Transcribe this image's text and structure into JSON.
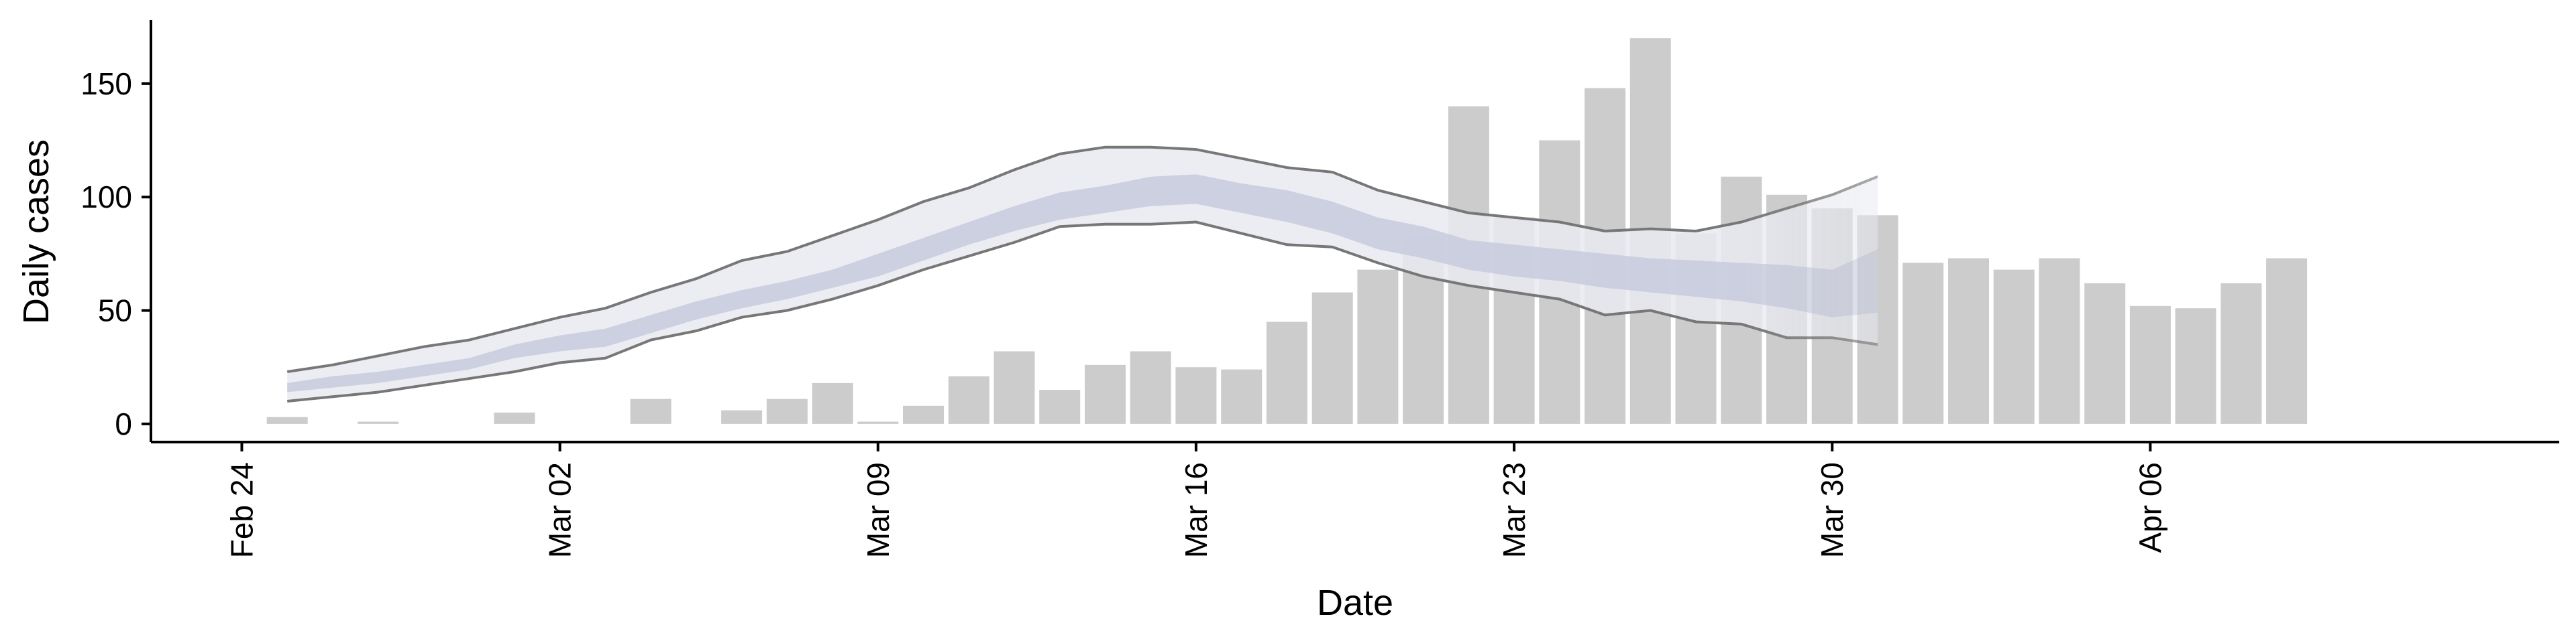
{
  "chart_data": {
    "type": "bar",
    "title": "",
    "xlabel": "Date",
    "ylabel": "Daily cases",
    "ylim": [
      -8,
      178
    ],
    "yticks": [
      0,
      50,
      100,
      150
    ],
    "xticks": [
      {
        "date": "2020-02-24",
        "label": "Feb 24"
      },
      {
        "date": "2020-03-02",
        "label": "Mar 02"
      },
      {
        "date": "2020-03-09",
        "label": "Mar 09"
      },
      {
        "date": "2020-03-16",
        "label": "Mar 16"
      },
      {
        "date": "2020-03-23",
        "label": "Mar 23"
      },
      {
        "date": "2020-03-30",
        "label": "Mar 30"
      },
      {
        "date": "2020-04-06",
        "label": "Apr 06"
      }
    ],
    "xlim": [
      "2020-02-22",
      "2020-04-15"
    ],
    "grid": false,
    "colors": {
      "bars": "#cccccc",
      "outer_band": "#e9eaf1",
      "inner_band": "#c7cbdd",
      "band_lines": "#777777"
    },
    "bars": [
      {
        "date": "2020-02-25",
        "value": 3
      },
      {
        "date": "2020-02-27",
        "value": 1
      },
      {
        "date": "2020-03-01",
        "value": 5
      },
      {
        "date": "2020-03-04",
        "value": 11
      },
      {
        "date": "2020-03-06",
        "value": 6
      },
      {
        "date": "2020-03-07",
        "value": 11
      },
      {
        "date": "2020-03-08",
        "value": 18
      },
      {
        "date": "2020-03-09",
        "value": 1
      },
      {
        "date": "2020-03-10",
        "value": 8
      },
      {
        "date": "2020-03-11",
        "value": 21
      },
      {
        "date": "2020-03-12",
        "value": 32
      },
      {
        "date": "2020-03-13",
        "value": 15
      },
      {
        "date": "2020-03-14",
        "value": 26
      },
      {
        "date": "2020-03-15",
        "value": 32
      },
      {
        "date": "2020-03-16",
        "value": 25
      },
      {
        "date": "2020-03-17",
        "value": 24
      },
      {
        "date": "2020-03-18",
        "value": 45
      },
      {
        "date": "2020-03-19",
        "value": 58
      },
      {
        "date": "2020-03-20",
        "value": 68
      },
      {
        "date": "2020-03-21",
        "value": 82
      },
      {
        "date": "2020-03-22",
        "value": 140
      },
      {
        "date": "2020-03-23",
        "value": 91
      },
      {
        "date": "2020-03-24",
        "value": 125
      },
      {
        "date": "2020-03-25",
        "value": 148
      },
      {
        "date": "2020-03-26",
        "value": 170
      },
      {
        "date": "2020-03-27",
        "value": 84
      },
      {
        "date": "2020-03-28",
        "value": 109
      },
      {
        "date": "2020-03-29",
        "value": 101
      },
      {
        "date": "2020-03-30",
        "value": 95
      },
      {
        "date": "2020-03-31",
        "value": 92
      },
      {
        "date": "2020-04-01",
        "value": 71
      },
      {
        "date": "2020-04-02",
        "value": 73
      },
      {
        "date": "2020-04-03",
        "value": 68
      },
      {
        "date": "2020-04-04",
        "value": 73
      },
      {
        "date": "2020-04-05",
        "value": 62
      },
      {
        "date": "2020-04-06",
        "value": 52
      },
      {
        "date": "2020-04-07",
        "value": 51
      },
      {
        "date": "2020-04-08",
        "value": 62
      },
      {
        "date": "2020-04-09",
        "value": 73
      }
    ],
    "bands": [
      {
        "date": "2020-02-25",
        "outer_low": 10,
        "inner_low": 14,
        "inner_high": 18,
        "outer_high": 23
      },
      {
        "date": "2020-02-26",
        "outer_low": 12,
        "inner_low": 16,
        "inner_high": 21,
        "outer_high": 26
      },
      {
        "date": "2020-02-27",
        "outer_low": 14,
        "inner_low": 18,
        "inner_high": 23,
        "outer_high": 30
      },
      {
        "date": "2020-02-28",
        "outer_low": 17,
        "inner_low": 21,
        "inner_high": 26,
        "outer_high": 34
      },
      {
        "date": "2020-02-29",
        "outer_low": 20,
        "inner_low": 24,
        "inner_high": 29,
        "outer_high": 37
      },
      {
        "date": "2020-03-01",
        "outer_low": 23,
        "inner_low": 29,
        "inner_high": 35,
        "outer_high": 42
      },
      {
        "date": "2020-03-02",
        "outer_low": 27,
        "inner_low": 32,
        "inner_high": 39,
        "outer_high": 47
      },
      {
        "date": "2020-03-03",
        "outer_low": 29,
        "inner_low": 34,
        "inner_high": 42,
        "outer_high": 51
      },
      {
        "date": "2020-03-04",
        "outer_low": 37,
        "inner_low": 40,
        "inner_high": 48,
        "outer_high": 58
      },
      {
        "date": "2020-03-05",
        "outer_low": 41,
        "inner_low": 46,
        "inner_high": 54,
        "outer_high": 64
      },
      {
        "date": "2020-03-06",
        "outer_low": 47,
        "inner_low": 51,
        "inner_high": 59,
        "outer_high": 72
      },
      {
        "date": "2020-03-07",
        "outer_low": 50,
        "inner_low": 55,
        "inner_high": 63,
        "outer_high": 76
      },
      {
        "date": "2020-03-08",
        "outer_low": 55,
        "inner_low": 60,
        "inner_high": 68,
        "outer_high": 83
      },
      {
        "date": "2020-03-09",
        "outer_low": 61,
        "inner_low": 65,
        "inner_high": 75,
        "outer_high": 90
      },
      {
        "date": "2020-03-10",
        "outer_low": 68,
        "inner_low": 72,
        "inner_high": 82,
        "outer_high": 98
      },
      {
        "date": "2020-03-11",
        "outer_low": 74,
        "inner_low": 79,
        "inner_high": 89,
        "outer_high": 104
      },
      {
        "date": "2020-03-12",
        "outer_low": 80,
        "inner_low": 85,
        "inner_high": 96,
        "outer_high": 112
      },
      {
        "date": "2020-03-13",
        "outer_low": 87,
        "inner_low": 90,
        "inner_high": 102,
        "outer_high": 119
      },
      {
        "date": "2020-03-14",
        "outer_low": 88,
        "inner_low": 93,
        "inner_high": 105,
        "outer_high": 122
      },
      {
        "date": "2020-03-15",
        "outer_low": 88,
        "inner_low": 96,
        "inner_high": 109,
        "outer_high": 122
      },
      {
        "date": "2020-03-16",
        "outer_low": 89,
        "inner_low": 97,
        "inner_high": 110,
        "outer_high": 121
      },
      {
        "date": "2020-03-17",
        "outer_low": 84,
        "inner_low": 93,
        "inner_high": 106,
        "outer_high": 117
      },
      {
        "date": "2020-03-18",
        "outer_low": 79,
        "inner_low": 89,
        "inner_high": 103,
        "outer_high": 113
      },
      {
        "date": "2020-03-19",
        "outer_low": 78,
        "inner_low": 84,
        "inner_high": 98,
        "outer_high": 111
      },
      {
        "date": "2020-03-20",
        "outer_low": 71,
        "inner_low": 77,
        "inner_high": 91,
        "outer_high": 103
      },
      {
        "date": "2020-03-21",
        "outer_low": 65,
        "inner_low": 73,
        "inner_high": 87,
        "outer_high": 98
      },
      {
        "date": "2020-03-22",
        "outer_low": 61,
        "inner_low": 68,
        "inner_high": 81,
        "outer_high": 93
      },
      {
        "date": "2020-03-23",
        "outer_low": 58,
        "inner_low": 65,
        "inner_high": 79,
        "outer_high": 91
      },
      {
        "date": "2020-03-24",
        "outer_low": 55,
        "inner_low": 63,
        "inner_high": 77,
        "outer_high": 89
      },
      {
        "date": "2020-03-25",
        "outer_low": 48,
        "inner_low": 60,
        "inner_high": 75,
        "outer_high": 85
      },
      {
        "date": "2020-03-26",
        "outer_low": 50,
        "inner_low": 58,
        "inner_high": 73,
        "outer_high": 86
      },
      {
        "date": "2020-03-27",
        "outer_low": 45,
        "inner_low": 56,
        "inner_high": 72,
        "outer_high": 85
      },
      {
        "date": "2020-03-28",
        "outer_low": 44,
        "inner_low": 54,
        "inner_high": 71,
        "outer_high": 89
      },
      {
        "date": "2020-03-29",
        "outer_low": 38,
        "inner_low": 51,
        "inner_high": 70,
        "outer_high": 95
      },
      {
        "date": "2020-03-30",
        "outer_low": 38,
        "inner_low": 47,
        "inner_high": 68,
        "outer_high": 101
      },
      {
        "date": "2020-03-31",
        "outer_low": 35,
        "inner_low": 49,
        "inner_high": 77,
        "outer_high": 109
      }
    ]
  }
}
